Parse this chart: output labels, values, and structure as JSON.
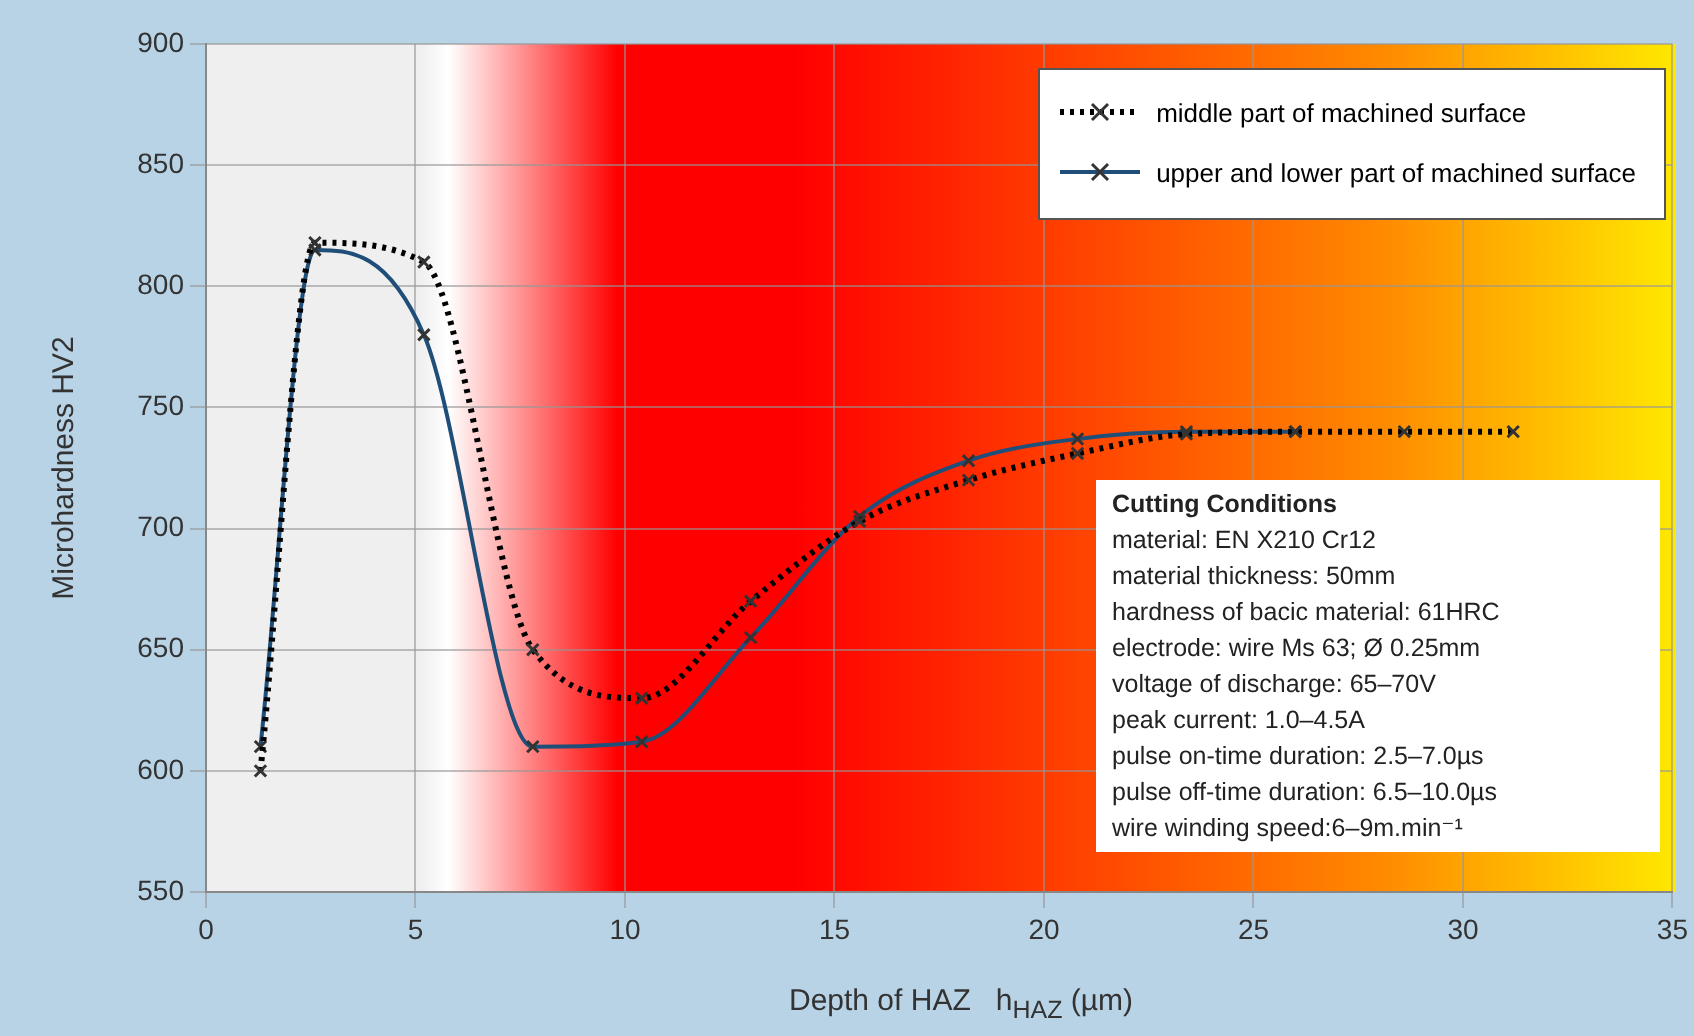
{
  "chart_data": {
    "type": "line",
    "xlabel": "Depth of HAZ   h$_{HAZ}$ (µm)",
    "ylabel": "Microhardness  HV2",
    "xlim": [
      0,
      35
    ],
    "xticks": [
      0,
      5,
      10,
      15,
      20,
      25,
      30,
      35
    ],
    "ylim": [
      550,
      900
    ],
    "yticks": [
      550,
      600,
      650,
      700,
      750,
      800,
      850,
      900
    ],
    "grid": true,
    "legend": "top right",
    "marker": "cross",
    "series": [
      {
        "name": "middle part of machined surface",
        "color": "#000000",
        "line_style": "dotted",
        "x": [
          1.3,
          2.6,
          5.2,
          7.8,
          10.4,
          13,
          15.6,
          18.2,
          20.8,
          23.4,
          26,
          28.6,
          31.2
        ],
        "values": [
          600,
          818,
          810,
          650,
          630,
          670,
          703,
          720,
          731,
          739,
          740,
          740,
          740
        ]
      },
      {
        "name": "upper and lower part of machined surface",
        "color": "#1f4e79",
        "line_style": "solid",
        "x": [
          1.3,
          2.6,
          5.2,
          7.8,
          10.4,
          13,
          15.6,
          18.2,
          20.8,
          23.4,
          26
        ],
        "values": [
          610,
          815,
          780,
          610,
          612,
          655,
          705,
          728,
          737,
          740,
          740
        ]
      }
    ],
    "annotations": [
      "Cutting Conditions",
      "material: EN X210 Cr12",
      "material thickness: 50mm",
      "hardness of bacic material:  61HRC",
      "electrode: wire Ms 63; Ø 0.25mm",
      "voltage of discharge:  65–70V",
      "peak current: 1.0–4.5A",
      "pulse on-time duration: 2.5–7.0µs",
      "pulse off-time duration: 6.5–10.0µs",
      "wire winding speed:6–9m.min⁻¹"
    ]
  }
}
